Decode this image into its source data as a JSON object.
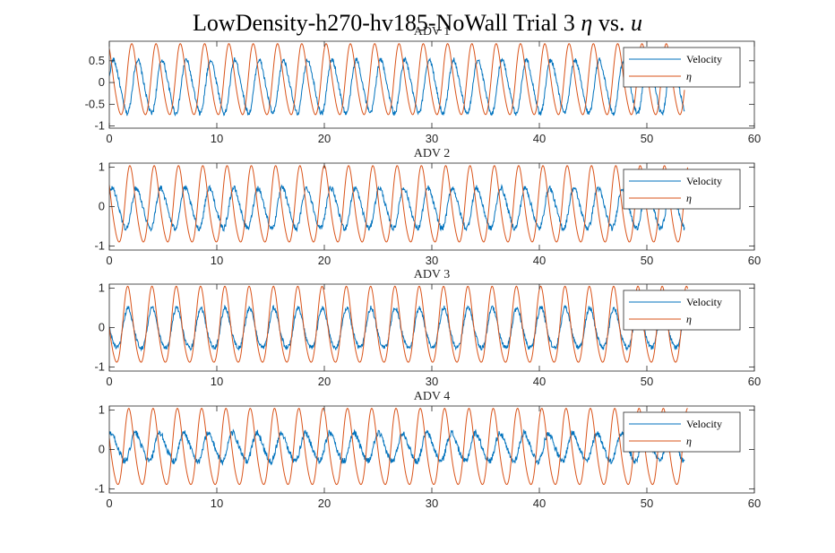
{
  "figure": {
    "title_prefix": "LowDensity-h270-hv185-NoWall Trial 3 ",
    "title_eta": "η",
    "title_middle": " vs. ",
    "title_u": "u"
  },
  "colors": {
    "velocity": "#0072BD",
    "eta": "#D95319",
    "axis": "#262626",
    "background": "#ffffff"
  },
  "chart_data": [
    {
      "type": "line",
      "title": "ADV 1",
      "xlim": [
        0,
        60
      ],
      "ylim": [
        -1.05,
        0.95
      ],
      "xticks": [
        0,
        10,
        20,
        30,
        40,
        50,
        60
      ],
      "yticks": [
        -1,
        -0.5,
        0,
        0.5
      ],
      "ytick_labels": [
        "-1",
        "-0.5",
        "0",
        "0.5"
      ],
      "legend": {
        "position": "top-right",
        "entries": [
          "Velocity",
          "η"
        ]
      },
      "series": [
        {
          "name": "Velocity",
          "color": "#0072BD",
          "x_range": [
            0,
            53.5
          ],
          "period_s": 2.26,
          "amplitude": 0.6,
          "offset": -0.1,
          "phase": 0.3,
          "noise": 0.06
        },
        {
          "name": "η",
          "color": "#D95319",
          "x_range": [
            0,
            53.5
          ],
          "period_s": 2.26,
          "amplitude": 0.8,
          "offset": 0.03,
          "phase": 1.9,
          "noise": 0.0,
          "first_peak": 1.0
        }
      ]
    },
    {
      "type": "line",
      "title": "ADV 2",
      "xlim": [
        0,
        60
      ],
      "ylim": [
        -1.1,
        1.1
      ],
      "xticks": [
        0,
        10,
        20,
        30,
        40,
        50,
        60
      ],
      "yticks": [
        -1,
        0,
        1
      ],
      "ytick_labels": [
        "-1",
        "0",
        "1"
      ],
      "legend": {
        "position": "top-right",
        "entries": [
          "Velocity",
          "η"
        ]
      },
      "series": [
        {
          "name": "Velocity",
          "color": "#0072BD",
          "x_range": [
            0,
            53.5
          ],
          "period_s": 2.26,
          "amplitude": 0.5,
          "offset": -0.05,
          "phase": 0.6,
          "noise": 0.07
        },
        {
          "name": "η",
          "color": "#D95319",
          "x_range": [
            0,
            53.8
          ],
          "period_s": 2.26,
          "amplitude": 0.95,
          "offset": 0.0,
          "phase": 2.4,
          "noise": 0.0,
          "first_peak": 1.0
        }
      ]
    },
    {
      "type": "line",
      "title": "ADV 3",
      "xlim": [
        0,
        60
      ],
      "ylim": [
        -1.1,
        1.1
      ],
      "xticks": [
        0,
        10,
        20,
        30,
        40,
        50,
        60
      ],
      "yticks": [
        -1,
        0,
        1
      ],
      "ytick_labels": [
        "-1",
        "0",
        "1"
      ],
      "legend": {
        "position": "top-right",
        "entries": [
          "Velocity",
          "η"
        ]
      },
      "series": [
        {
          "name": "Velocity",
          "color": "#0072BD",
          "x_range": [
            0,
            53.5
          ],
          "period_s": 2.26,
          "amplitude": 0.5,
          "offset": -0.05,
          "phase": 2.9,
          "noise": 0.06
        },
        {
          "name": "η",
          "color": "#D95319",
          "x_range": [
            0,
            53.8
          ],
          "period_s": 2.26,
          "amplitude": 0.95,
          "offset": 0.0,
          "phase": 3.0,
          "noise": 0.0,
          "first_peak": 1.0
        }
      ]
    },
    {
      "type": "line",
      "title": "ADV 4",
      "xlim": [
        0,
        60
      ],
      "ylim": [
        -1.1,
        1.1
      ],
      "xticks": [
        0,
        10,
        20,
        30,
        40,
        50,
        60
      ],
      "yticks": [
        -1,
        0,
        1
      ],
      "ytick_labels": [
        "-1",
        "0",
        "1"
      ],
      "legend": {
        "position": "top-right",
        "entries": [
          "Velocity",
          "η"
        ]
      },
      "series": [
        {
          "name": "Velocity",
          "color": "#0072BD",
          "x_range": [
            0,
            53.5
          ],
          "period_s": 2.26,
          "amplitude": 0.35,
          "offset": 0.05,
          "phase": 0.9,
          "noise": 0.08
        },
        {
          "name": "η",
          "color": "#D95319",
          "x_range": [
            0,
            53.8
          ],
          "period_s": 2.26,
          "amplitude": 0.95,
          "offset": 0.0,
          "phase": 2.7,
          "noise": 0.0,
          "first_peak": 1.0
        }
      ]
    }
  ]
}
